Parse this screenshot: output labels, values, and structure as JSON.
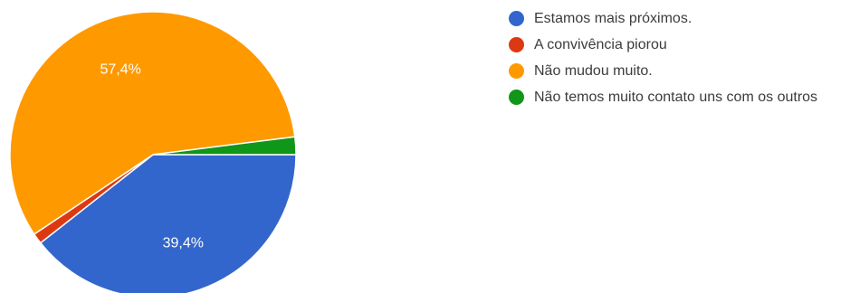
{
  "chart_data": {
    "type": "pie",
    "categories": [
      "Estamos mais próximos.",
      "A convivência piorou",
      "Não mudou muito.",
      "Não temos muito contato uns com os outros"
    ],
    "values": [
      39.4,
      1.2,
      57.4,
      2.0
    ],
    "data_labels": [
      "39,4%",
      "",
      "57,4%",
      ""
    ],
    "colors": [
      "#3366cc",
      "#dc3912",
      "#ff9900",
      "#109618"
    ],
    "legend_position": "right",
    "start": "3 o'clock, clockwise"
  }
}
